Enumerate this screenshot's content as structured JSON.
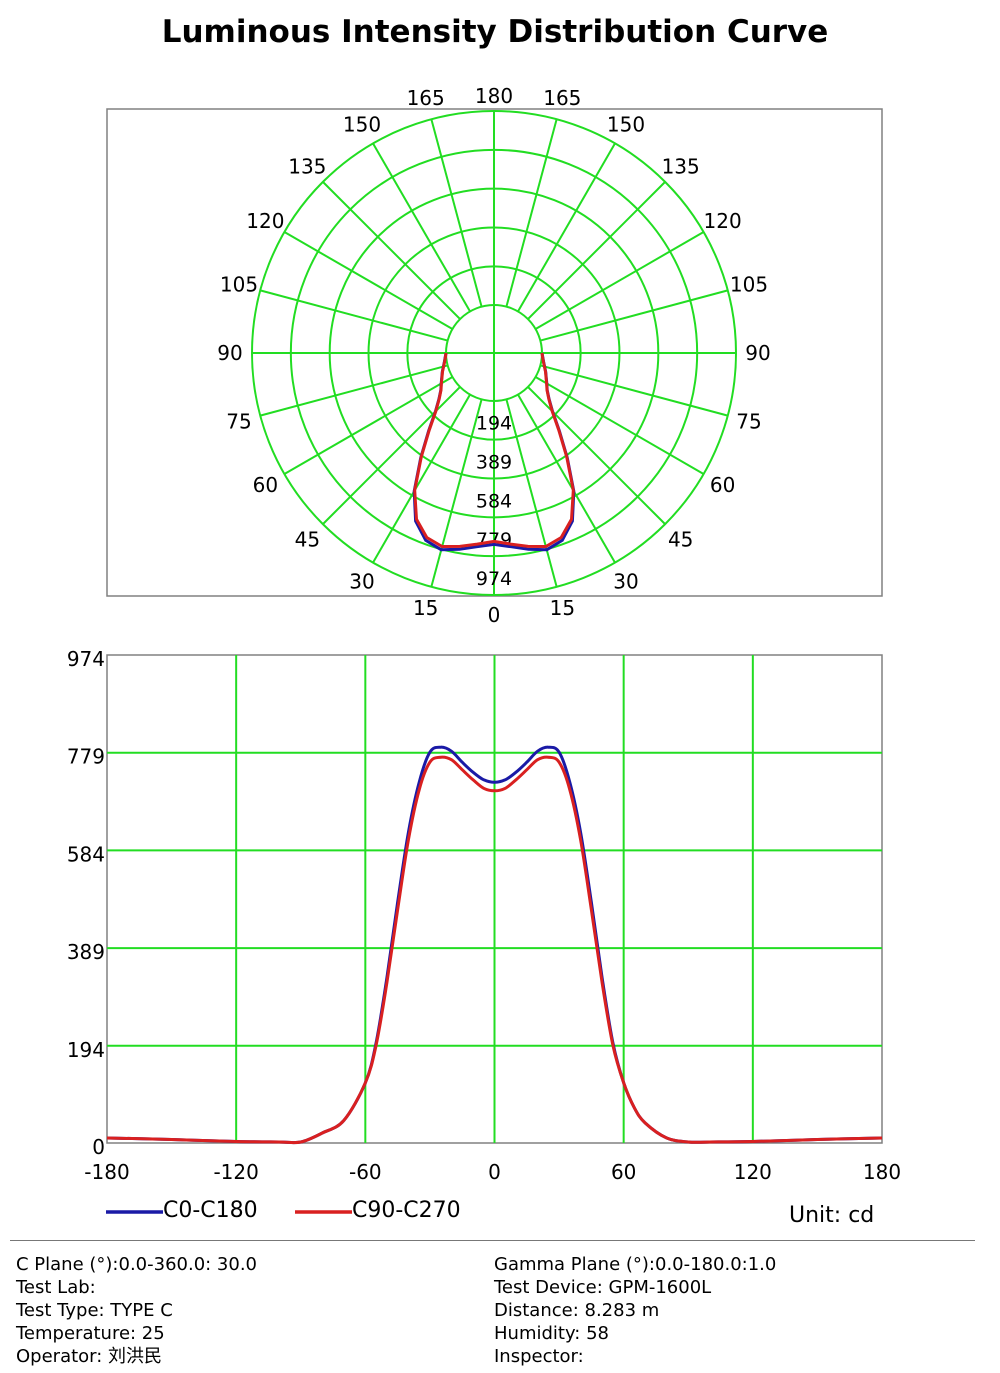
{
  "page": {
    "title": "Luminous Intensity Distribution Curve",
    "unit": "Unit: cd"
  },
  "colors": {
    "grid": "#22dd22",
    "frame": "#808080",
    "c0": "#1a1aa6",
    "c90": "#d92020"
  },
  "chart_data": [
    {
      "type": "polar",
      "angle_labels_left": [
        "165",
        "150",
        "135",
        "120",
        "105",
        "90",
        "75",
        "60",
        "45",
        "30",
        "15"
      ],
      "angle_labels_right": [
        "165",
        "150",
        "135",
        "120",
        "105",
        "90",
        "75",
        "60",
        "45",
        "30",
        "15"
      ],
      "angle_top": "180",
      "angle_bottom": "0",
      "radial_labels": [
        "194",
        "389",
        "584",
        "779",
        "974"
      ],
      "rmax": 974,
      "grid": true,
      "series": [
        {
          "name": "C0-C180",
          "gamma": [
            0,
            5,
            10,
            15,
            20,
            25,
            30,
            35,
            40,
            45,
            50,
            55,
            60,
            65,
            70,
            75,
            80,
            85,
            90
          ],
          "values": [
            720,
            735,
            760,
            782,
            760,
            690,
            560,
            400,
            270,
            175,
            120,
            85,
            65,
            48,
            35,
            22,
            12,
            5,
            0
          ]
        },
        {
          "name": "C90-C270",
          "gamma": [
            0,
            5,
            10,
            15,
            20,
            25,
            30,
            35,
            40,
            45,
            50,
            55,
            60,
            65,
            70,
            75,
            80,
            85,
            90
          ],
          "values": [
            705,
            722,
            745,
            765,
            745,
            680,
            555,
            395,
            265,
            172,
            118,
            84,
            64,
            47,
            34,
            21,
            11,
            4,
            0
          ]
        }
      ]
    },
    {
      "type": "line",
      "xlim": [
        -180,
        180
      ],
      "ylim": [
        0,
        974
      ],
      "xticks": [
        "-180",
        "-120",
        "-60",
        "0",
        "60",
        "120",
        "180"
      ],
      "yticks": [
        "0",
        "194",
        "389",
        "584",
        "779",
        "974"
      ],
      "grid": true,
      "series": [
        {
          "name": "C0-C180",
          "x": [
            -180,
            -150,
            -120,
            -100,
            -90,
            -80,
            -70,
            -60,
            -55,
            -50,
            -45,
            -40,
            -35,
            -30,
            -25,
            -20,
            -15,
            -10,
            -5,
            0,
            5,
            10,
            15,
            20,
            25,
            30,
            35,
            40,
            45,
            50,
            55,
            60,
            65,
            70,
            80,
            90,
            100,
            120,
            150,
            180
          ],
          "y": [
            10,
            7,
            3,
            2,
            2,
            20,
            45,
            120,
            200,
            330,
            480,
            620,
            720,
            780,
            790,
            782,
            760,
            740,
            725,
            720,
            725,
            740,
            760,
            782,
            790,
            780,
            720,
            620,
            480,
            330,
            200,
            120,
            70,
            40,
            10,
            2,
            2,
            3,
            7,
            10
          ]
        },
        {
          "name": "C90-C270",
          "x": [
            -180,
            -150,
            -120,
            -100,
            -90,
            -80,
            -70,
            -60,
            -55,
            -50,
            -45,
            -40,
            -35,
            -30,
            -25,
            -20,
            -15,
            -10,
            -5,
            0,
            5,
            10,
            15,
            20,
            25,
            30,
            35,
            40,
            45,
            50,
            55,
            60,
            65,
            70,
            80,
            90,
            100,
            120,
            150,
            180
          ],
          "y": [
            10,
            7,
            3,
            2,
            2,
            20,
            45,
            120,
            195,
            320,
            465,
            605,
            705,
            760,
            770,
            765,
            745,
            725,
            708,
            703,
            708,
            725,
            745,
            765,
            770,
            760,
            705,
            605,
            465,
            320,
            195,
            120,
            70,
            40,
            10,
            2,
            2,
            3,
            7,
            10
          ]
        }
      ]
    }
  ],
  "legend": [
    {
      "name": "C0-C180"
    },
    {
      "name": "C90-C270"
    }
  ],
  "info": {
    "left": [
      "C Plane (°):0.0-360.0: 30.0",
      "Test Lab:",
      "Test Type: TYPE C",
      "Temperature: 25",
      "Operator: 刘洪民"
    ],
    "right": [
      "Gamma Plane (°):0.0-180.0:1.0",
      "Test Device: GPM-1600L",
      "Distance: 8.283 m",
      "Humidity: 58",
      "Inspector:"
    ]
  }
}
